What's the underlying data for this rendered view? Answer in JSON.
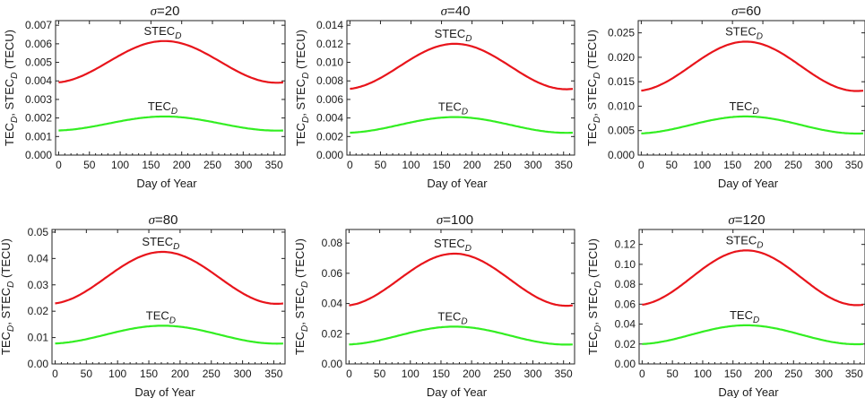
{
  "figure": {
    "series_colors": {
      "STEC": "#e8141b",
      "TEC": "#33ee22"
    }
  },
  "chart_data": [
    {
      "type": "line",
      "title": "σ=20",
      "title_parts": {
        "symbol": "σ",
        "value": "=20"
      },
      "xlabel": "Day of Year",
      "ylabel": "TEC_D, STEC_D (TECU)",
      "ylabel_parts": {
        "a": "TEC",
        "a_sub": "D",
        "sep": ", ",
        "b": "STEC",
        "b_sub": "D",
        "unit": " (TECU)"
      },
      "xlim": [
        -5,
        368
      ],
      "ylim": [
        0,
        0.00725
      ],
      "xticks": [
        0,
        50,
        100,
        150,
        200,
        250,
        300,
        350
      ],
      "yticks": [
        0.0,
        0.001,
        0.002,
        0.003,
        0.004,
        0.005,
        0.006,
        0.007
      ],
      "ytick_labels": [
        "0.000",
        "0.001",
        "0.002",
        "0.003",
        "0.004",
        "0.005",
        "0.006",
        "0.007"
      ],
      "peak_day": 172,
      "series": [
        {
          "name": "STEC_D",
          "label": "STEC",
          "label_sub": "D",
          "min": 0.0039,
          "max": 0.00615,
          "color": "#e8141b"
        },
        {
          "name": "TEC_D",
          "label": "TEC",
          "label_sub": "D",
          "min": 0.00132,
          "max": 0.00208,
          "color": "#33ee22"
        }
      ]
    },
    {
      "type": "line",
      "title": "σ=40",
      "title_parts": {
        "symbol": "σ",
        "value": "=40"
      },
      "xlabel": "Day of Year",
      "ylabel": "TEC_D, STEC_D (TECU)",
      "ylabel_parts": {
        "a": "TEC",
        "a_sub": "D",
        "sep": ", ",
        "b": "STEC",
        "b_sub": "D",
        "unit": " (TECU)"
      },
      "xlim": [
        -5,
        368
      ],
      "ylim": [
        0,
        0.0145
      ],
      "xticks": [
        0,
        50,
        100,
        150,
        200,
        250,
        300,
        350
      ],
      "yticks": [
        0.0,
        0.002,
        0.004,
        0.006,
        0.008,
        0.01,
        0.012,
        0.014
      ],
      "ytick_labels": [
        "0.000",
        "0.002",
        "0.004",
        "0.006",
        "0.008",
        "0.010",
        "0.012",
        "0.014"
      ],
      "peak_day": 172,
      "series": [
        {
          "name": "STEC_D",
          "label": "STEC",
          "label_sub": "D",
          "min": 0.0071,
          "max": 0.012,
          "color": "#e8141b"
        },
        {
          "name": "TEC_D",
          "label": "TEC",
          "label_sub": "D",
          "min": 0.0024,
          "max": 0.0041,
          "color": "#33ee22"
        }
      ]
    },
    {
      "type": "line",
      "title": "σ=60",
      "title_parts": {
        "symbol": "σ",
        "value": "=60"
      },
      "xlabel": "Day of Year",
      "ylabel": "TEC_D, STEC_D (TECU)",
      "ylabel_parts": {
        "a": "TEC",
        "a_sub": "D",
        "sep": ", ",
        "b": "STEC",
        "b_sub": "D",
        "unit": " (TECU)"
      },
      "xlim": [
        -5,
        368
      ],
      "ylim": [
        0,
        0.0275
      ],
      "xticks": [
        0,
        50,
        100,
        150,
        200,
        250,
        300,
        350
      ],
      "yticks": [
        0.0,
        0.005,
        0.01,
        0.015,
        0.02,
        0.025
      ],
      "ytick_labels": [
        "0.000",
        "0.005",
        "0.010",
        "0.015",
        "0.020",
        "0.025"
      ],
      "peak_day": 172,
      "series": [
        {
          "name": "STEC_D",
          "label": "STEC",
          "label_sub": "D",
          "min": 0.0131,
          "max": 0.0232,
          "color": "#e8141b"
        },
        {
          "name": "TEC_D",
          "label": "TEC",
          "label_sub": "D",
          "min": 0.0044,
          "max": 0.0079,
          "color": "#33ee22"
        }
      ]
    },
    {
      "type": "line",
      "title": "σ=80",
      "title_parts": {
        "symbol": "σ",
        "value": "=80"
      },
      "xlabel": "Day of Year",
      "ylabel": "TEC_D, STEC_D (TECU)",
      "ylabel_parts": {
        "a": "TEC",
        "a_sub": "D",
        "sep": ", ",
        "b": "STEC",
        "b_sub": "D",
        "unit": " (TECU)"
      },
      "xlim": [
        -5,
        368
      ],
      "ylim": [
        0,
        0.051
      ],
      "xticks": [
        0,
        50,
        100,
        150,
        200,
        250,
        300,
        350
      ],
      "yticks": [
        0.0,
        0.01,
        0.02,
        0.03,
        0.04,
        0.05
      ],
      "ytick_labels": [
        "0.00",
        "0.01",
        "0.02",
        "0.03",
        "0.04",
        "0.05"
      ],
      "peak_day": 172,
      "series": [
        {
          "name": "STEC_D",
          "label": "STEC",
          "label_sub": "D",
          "min": 0.0228,
          "max": 0.0425,
          "color": "#e8141b"
        },
        {
          "name": "TEC_D",
          "label": "TEC",
          "label_sub": "D",
          "min": 0.0077,
          "max": 0.0145,
          "color": "#33ee22"
        }
      ]
    },
    {
      "type": "line",
      "title": "σ=100",
      "title_parts": {
        "symbol": "σ",
        "value": "=100"
      },
      "xlabel": "Day of Year",
      "ylabel": "TEC_D, STEC_D (TECU)",
      "ylabel_parts": {
        "a": "TEC",
        "a_sub": "D",
        "sep": ", ",
        "b": "STEC",
        "b_sub": "D",
        "unit": " (TECU)"
      },
      "xlim": [
        -5,
        368
      ],
      "ylim": [
        0,
        0.089
      ],
      "xticks": [
        0,
        50,
        100,
        150,
        200,
        250,
        300,
        350
      ],
      "yticks": [
        0.0,
        0.02,
        0.04,
        0.06,
        0.08
      ],
      "ytick_labels": [
        "0.00",
        "0.02",
        "0.04",
        "0.06",
        "0.08"
      ],
      "peak_day": 172,
      "series": [
        {
          "name": "STEC_D",
          "label": "STEC",
          "label_sub": "D",
          "min": 0.0385,
          "max": 0.073,
          "color": "#e8141b"
        },
        {
          "name": "TEC_D",
          "label": "TEC",
          "label_sub": "D",
          "min": 0.0128,
          "max": 0.0247,
          "color": "#33ee22"
        }
      ]
    },
    {
      "type": "line",
      "title": "σ=120",
      "title_parts": {
        "symbol": "σ",
        "value": "=120"
      },
      "xlabel": "Day of Year",
      "ylabel": "TEC_D, STEC_D (TECU)",
      "ylabel_parts": {
        "a": "TEC",
        "a_sub": "D",
        "sep": ", ",
        "b": "STEC",
        "b_sub": "D",
        "unit": " (TECU)"
      },
      "xlim": [
        -5,
        368
      ],
      "ylim": [
        0,
        0.135
      ],
      "xticks": [
        0,
        50,
        100,
        150,
        200,
        250,
        300,
        350
      ],
      "yticks": [
        0.0,
        0.02,
        0.04,
        0.06,
        0.08,
        0.1,
        0.12
      ],
      "ytick_labels": [
        "0.00",
        "0.02",
        "0.04",
        "0.06",
        "0.08",
        "0.10",
        "0.12"
      ],
      "peak_day": 172,
      "series": [
        {
          "name": "STEC_D",
          "label": "STEC",
          "label_sub": "D",
          "min": 0.059,
          "max": 0.114,
          "color": "#e8141b"
        },
        {
          "name": "TEC_D",
          "label": "TEC",
          "label_sub": "D",
          "min": 0.0198,
          "max": 0.0388,
          "color": "#33ee22"
        }
      ]
    }
  ]
}
